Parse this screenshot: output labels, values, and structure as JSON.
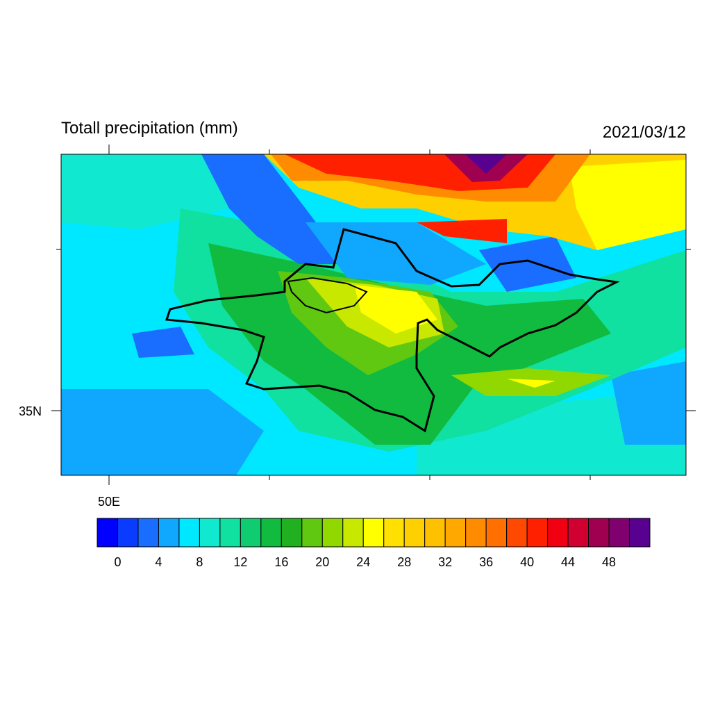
{
  "header": {
    "title": "Totall precipitation (mm)",
    "date": "2021/03/12"
  },
  "axes": {
    "y_label": "35N",
    "x_label": "50E"
  },
  "colorbar": {
    "labels": [
      0,
      4,
      8,
      12,
      16,
      20,
      24,
      28,
      32,
      36,
      40,
      44,
      48
    ],
    "colors": [
      "#0000ff",
      "#0a3cff",
      "#1a6eff",
      "#10a8ff",
      "#00e8ff",
      "#10e8d0",
      "#10e0a0",
      "#10cc70",
      "#10bb40",
      "#20b020",
      "#60c810",
      "#90d800",
      "#c8e800",
      "#ffff00",
      "#ffe000",
      "#ffd000",
      "#ffc000",
      "#ffa800",
      "#ff8c00",
      "#ff7000",
      "#ff4800",
      "#ff2000",
      "#f00010",
      "#d00030",
      "#a00050",
      "#800070",
      "#580090"
    ]
  }
}
